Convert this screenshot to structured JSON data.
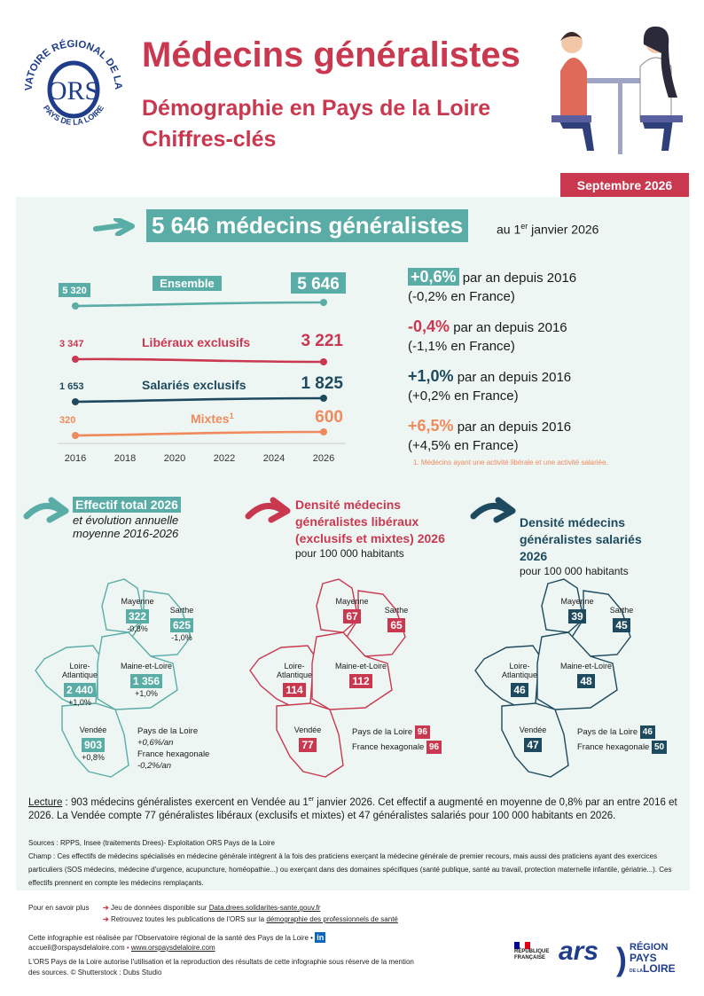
{
  "logo_ors": {
    "line1": "OBSERVATOIRE RÉGIONAL DE LA SANTÉ",
    "line2": "PAYS DE LA LOIRE",
    "mark": "ORS"
  },
  "header": {
    "title": "Médecins généralistes",
    "subtitle1": "Démographie en Pays de la Loire",
    "subtitle2": "Chiffres-clés",
    "date_badge": "Septembre 2026"
  },
  "headline": {
    "value": "5 646 médecins généralistes",
    "after_prefix": "au 1",
    "after_sup": "er",
    "after_suffix": " janvier 2026"
  },
  "chart_data": {
    "type": "line",
    "x": [
      2016,
      2026
    ],
    "xticks": [
      "2016",
      "2018",
      "2020",
      "2022",
      "2024",
      "2026"
    ],
    "series": [
      {
        "name": "Ensemble",
        "values": [
          5320,
          5646
        ],
        "start_label": "5 320",
        "end_label": "5 646",
        "color": "#5aada6"
      },
      {
        "name": "Libéraux exclusifs",
        "values": [
          3347,
          3221
        ],
        "start_label": "3 347",
        "end_label": "3 221",
        "color": "#c9384f"
      },
      {
        "name": "Salariés exclusifs",
        "values": [
          1653,
          1825
        ],
        "start_label": "1 653",
        "end_label": "1 825",
        "color": "#1d4a5e"
      },
      {
        "name": "Mixtes",
        "sup": "1",
        "values": [
          320,
          600
        ],
        "start_label": "320",
        "end_label": "600",
        "color": "#f08a5d"
      }
    ]
  },
  "stats": [
    {
      "pct": "+0,6%",
      "text": " par an depuis 2016",
      "france": "(-0,2% en France)",
      "color": "#5aada6",
      "boxed": true
    },
    {
      "pct": "-0,4%",
      "text": " par an depuis 2016",
      "france": "(-1,1% en France)",
      "color": "#c9384f",
      "boxed": false
    },
    {
      "pct": "+1,0%",
      "text": " par an depuis 2016",
      "france": "(+0,2% en France)",
      "color": "#1d4a5e",
      "boxed": false
    },
    {
      "pct": "+6,5%",
      "text": " par an depuis 2016",
      "france": "(+4,5% en France)",
      "color": "#f08a5d",
      "boxed": false
    }
  ],
  "footnote": "1. Médecins ayant une activité libérale et une activité salariée.",
  "maps": {
    "effectif": {
      "title": "Effectif total 2026",
      "subtitle1": "et évolution annuelle",
      "subtitle2": "moyenne 2016-2026",
      "regions": [
        {
          "name": "Mayenne",
          "value": "322",
          "pct": "-0,8%"
        },
        {
          "name": "Sarthe",
          "value": "625",
          "pct": "-1,0%"
        },
        {
          "name": "Loire-\nAtlantique",
          "value": "2 440",
          "pct": "+1,0%"
        },
        {
          "name": "Maine-et-Loire",
          "value": "1 356",
          "pct": "+1,0%"
        },
        {
          "name": "Vendée",
          "value": "903",
          "pct": "+0,8%"
        }
      ],
      "pdl_label": "Pays de la Loire",
      "pdl_pct": "+0,6%/an",
      "fr_label": "France hexagonale",
      "fr_pct": "-0,2%/an"
    },
    "liberaux": {
      "title1": "Densité médecins",
      "title2": "généralistes libéraux",
      "title3": "(exclusifs et mixtes) 2026",
      "subtitle": "pour 100 000 habitants",
      "regions": [
        {
          "name": "Mayenne",
          "value": "67"
        },
        {
          "name": "Sarthe",
          "value": "65"
        },
        {
          "name": "Loire-\nAtlantique",
          "value": "114"
        },
        {
          "name": "Maine-et-Loire",
          "value": "112"
        },
        {
          "name": "Vendée",
          "value": "77"
        }
      ],
      "pdl_label": "Pays de la Loire",
      "pdl_value": "96",
      "fr_label": "France hexagonale",
      "fr_value": "96"
    },
    "salaries": {
      "title1": "Densité médecins",
      "title2": "généralistes salariés",
      "title3": "2026",
      "subtitle": "pour 100 000 habitants",
      "regions": [
        {
          "name": "Mayenne",
          "value": "39"
        },
        {
          "name": "Sarthe",
          "value": "45"
        },
        {
          "name": "Loire-\nAtlantique",
          "value": "46"
        },
        {
          "name": "Maine-et-Loire",
          "value": "48"
        },
        {
          "name": "Vendée",
          "value": "47"
        }
      ],
      "pdl_label": "Pays de la Loire",
      "pdl_value": "46",
      "fr_label": "France hexagonale",
      "fr_value": "50"
    }
  },
  "lecture": {
    "label": "Lecture",
    "text1": " : 903 médecins généralistes exercent en Vendée au 1",
    "sup": "er",
    "text2": " janvier 2026. Cet effectif a augmenté en moyenne de 0,8% par an entre 2016 et 2026. La Vendée compte 77 généralistes libéraux (exclusifs et mixtes) et 47 généralistes salariés pour 100 000 habitants en 2026."
  },
  "sources": "Sources : RPPS, Insee (traitements Drees)- Exploitation ORS Pays de la Loire",
  "champ": "Champ : Ces effectifs de médecins spécialisés en médecine générale intègrent à la fois des praticiens exerçant la médecine générale de premier recours, mais aussi des praticiens ayant des exercices particuliers (SOS médecins, médecine d'urgence, acupuncture, homéopathie...) ou exerçant dans des domaines spécifiques (santé publique, santé au travail, protection maternelle infantile, gériatrie...). Ces effectifs prennent en compte les médecins remplaçants.",
  "footer": {
    "more_label": "Pour en savoir plus",
    "link1_pre": "Jeu de données disponible sur ",
    "link1": "Data.drees.solidarites-sante.gouv.fr",
    "link2_pre": "Retrouvez toutes les publications de l'ORS sur la ",
    "link2": "démographie des professionnels de santé",
    "made_by": "Cette infographie est réalisée par l'Observatoire régional de la santé des Pays de la Loire •",
    "email": "accueil@orspaysdelaloire.com",
    "site": "www.orspaysdelaloire.com",
    "rights1": "L'ORS Pays de la Loire autorise l'utilisation et la reproduction des résultats de cette infographie sous réserve de la mention",
    "rights2": "des sources. © Shutterstock : Dubs Studio",
    "rf1": "RÉPUBLIQUE",
    "rf2": "FRANÇAISE",
    "ars": "ars",
    "region1": "RÉGION",
    "region2": "PAYS",
    "region3": "LOIRE",
    "region_small": "DE LA"
  }
}
